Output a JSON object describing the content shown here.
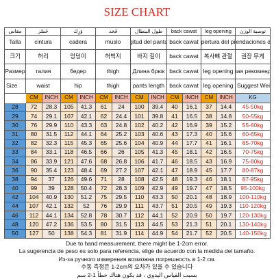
{
  "title": "SIZE CHART",
  "headers": {
    "ar": [
      "مقاس",
      "خَصْر",
      "وَرِك",
      "فَخذ",
      "طول البنطال",
      "back cawat",
      "leg opening",
      "توصية الوزن"
    ],
    "es": [
      "Talla",
      "cintura",
      "cadera",
      "muslo",
      "longitud del pantalón",
      "back cawat",
      "apertura del pie",
      "Recomendaciones de peso"
    ],
    "ko": [
      "크기",
      "허리",
      "엉덩이",
      "허벅지",
      "바지 길이",
      "back cawat",
      "복사뼈 관절",
      "권장 무게"
    ],
    "ru": [
      "Размер",
      "талия",
      "бедер",
      "thigh",
      "Длина брюк",
      "back cawat",
      "leg opening",
      "весовая рекомендации"
    ],
    "en": [
      "Size",
      "waist",
      "hip",
      "thigh",
      "pants length",
      "back cawat",
      "leg opening",
      "Suggest Weight"
    ]
  },
  "units": {
    "cm": "CM",
    "inch": "INCH",
    "kg": "KG"
  },
  "rows": [
    [
      "28",
      "72",
      "28.3",
      "105",
      "41.3",
      "61",
      "24",
      "100",
      "39.4",
      "40",
      "16.1",
      "37",
      "14.4",
      "45-50kg"
    ],
    [
      "29",
      "74",
      "29.1",
      "107",
      "42.1",
      "62",
      "24.4",
      "101",
      "39.8",
      "41",
      "16.5",
      "38",
      "14.8",
      "50-55kg"
    ],
    [
      "30",
      "76",
      "29.9",
      "110",
      "43.3",
      "63",
      "24.8",
      "102",
      "40.2",
      "42",
      "16.9",
      "39",
      "15.2",
      "55-60kg"
    ],
    [
      "31",
      "80",
      "31.5",
      "112",
      "44.1",
      "64",
      "25.2",
      "103",
      "40.6",
      "43",
      "17.3",
      "40",
      "15.6",
      "60-65kg"
    ],
    [
      "32",
      "82",
      "32.3",
      "115",
      "45.3",
      "65",
      "25.6",
      "104",
      "40.9",
      "44",
      "17.7",
      "41",
      "16.1",
      "65-70kg"
    ],
    [
      "33",
      "84",
      "33.1",
      "118",
      "46.5",
      "66",
      "26",
      "105",
      "41.3",
      "45",
      "18.1",
      "42",
      "16.5",
      "70-75kg"
    ],
    [
      "34",
      "86",
      "33.9",
      "121",
      "47.6",
      "68",
      "26.8",
      "106",
      "41.7",
      "46",
      "18.5",
      "43",
      "16.9",
      "75-80kg"
    ],
    [
      "36",
      "90",
      "35.4",
      "123",
      "48.4",
      "69",
      "27.2",
      "107",
      "42.1",
      "47",
      "18.9",
      "45",
      "17.7",
      "80-87kg"
    ],
    [
      "38",
      "94",
      "37",
      "126",
      "49.6",
      "71",
      "28",
      "108",
      "42.5",
      "48",
      "19.3",
      "46",
      "18.1",
      "87-95kg"
    ],
    [
      "40",
      "99",
      "39",
      "128",
      "50.4",
      "72",
      "28.3",
      "109",
      "42.9",
      "49",
      "19.7",
      "47",
      "18.5",
      "95-100kg"
    ],
    [
      "42",
      "104",
      "40.9",
      "130",
      "51.2",
      "75",
      "29.5",
      "110",
      "43.3",
      "50",
      "20.1",
      "48",
      "18.9",
      "100-110kg"
    ],
    [
      "44",
      "107",
      "42.1",
      "132",
      "52",
      "76",
      "29.9",
      "111",
      "43.7",
      "51",
      "20.5",
      "49",
      "19.3",
      "110-120kg"
    ],
    [
      "46",
      "112",
      "44.1",
      "134",
      "52.8",
      "78",
      "30.7",
      "112",
      "44.1",
      "52",
      "20.9",
      "50",
      "19.7",
      "120-130kg"
    ],
    [
      "48",
      "120",
      "47.2",
      "136",
      "53.5",
      "80",
      "31.5",
      "113",
      "44.5",
      "53",
      "21.3",
      "51",
      "20.1",
      "130-140kg"
    ],
    [
      "50",
      "127",
      "50",
      "138",
      "54.3",
      "81",
      "31.9",
      "114",
      "44.9",
      "54",
      "21.7",
      "52",
      "20.5",
      "140-150kg"
    ]
  ],
  "notes": [
    "Due to hand measurement, there might be 1-2cm error.",
    "La sugerencia de peso es solo para referencia, elige de acuerdo con la medida del tamaño.",
    "Из-за ручного измерения возможна погрешность в 1-2 см.",
    "수동 측정은 1-2cm의 오차가 있을 수 있습니다",
    "بسبب القياس اليدوي ، قد يكون هناك خطأ 1-2 سم"
  ]
}
